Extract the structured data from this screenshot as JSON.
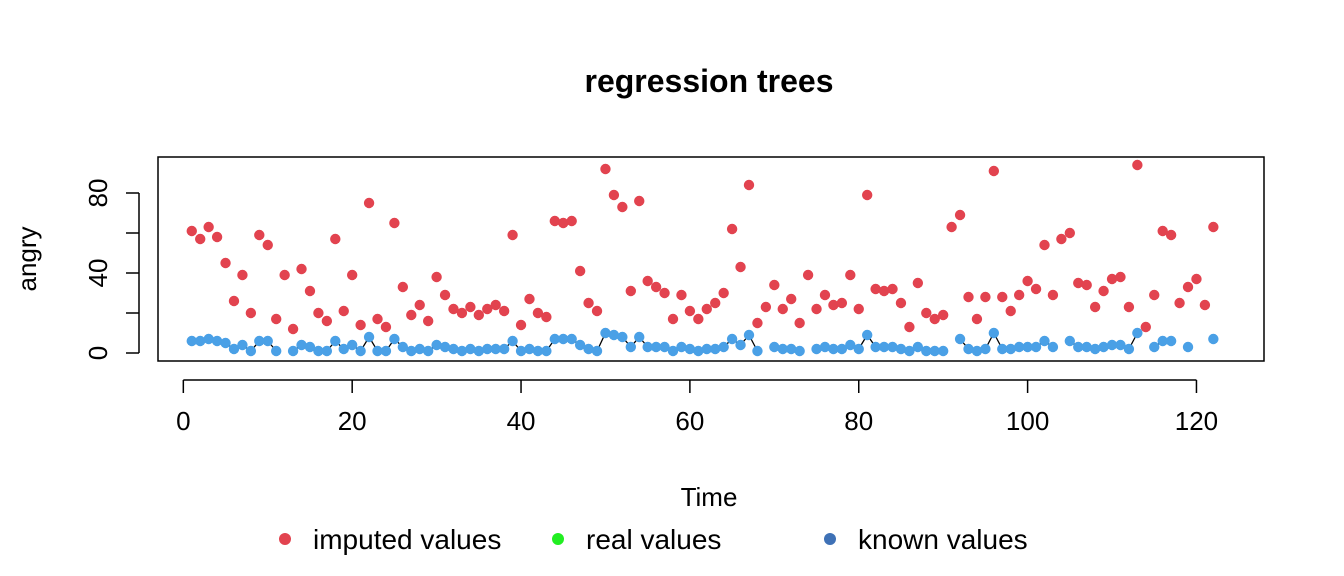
{
  "chart_data": {
    "type": "scatter",
    "title": "regression trees",
    "xlabel": "Time",
    "ylabel": "angry",
    "xlim": [
      -3,
      128
    ],
    "ylim": [
      -4,
      98
    ],
    "x_ticks": [
      0,
      20,
      40,
      60,
      80,
      100,
      120
    ],
    "y_ticks": [
      0,
      20,
      40,
      60,
      80
    ],
    "y_tick_labels": [
      0,
      40,
      80
    ],
    "grid": false,
    "legend": {
      "placement": "bottom",
      "entries": [
        {
          "label": "imputed values",
          "color": "#e2434f"
        },
        {
          "label": "real values",
          "color": "#22ee22"
        },
        {
          "label": "known values",
          "color": "#3e71b6"
        }
      ]
    },
    "colors": {
      "imputed": "#e2434f",
      "known": "#4aa0e6",
      "line": "#000000"
    },
    "series": [
      {
        "name": "imputed values",
        "x": [
          1,
          2,
          3,
          4,
          5,
          6,
          7,
          8,
          9,
          10,
          11,
          12,
          13,
          14,
          15,
          16,
          17,
          18,
          19,
          20,
          21,
          22,
          23,
          24,
          25,
          26,
          27,
          28,
          29,
          30,
          31,
          32,
          33,
          34,
          35,
          36,
          37,
          38,
          39,
          40,
          41,
          42,
          43,
          44,
          45,
          46,
          47,
          48,
          49,
          50,
          51,
          52,
          53,
          54,
          55,
          56,
          57,
          58,
          59,
          60,
          61,
          62,
          63,
          64,
          65,
          66,
          67,
          68,
          69,
          70,
          71,
          72,
          73,
          74,
          75,
          76,
          77,
          78,
          79,
          80,
          81,
          82,
          83,
          84,
          85,
          86,
          87,
          88,
          89,
          90,
          91,
          92,
          93,
          94,
          95,
          96,
          97,
          98,
          99,
          100,
          101,
          102,
          103,
          104,
          105,
          106,
          107,
          108,
          109,
          110,
          111,
          112,
          113,
          114,
          115,
          116,
          117,
          118,
          119,
          120,
          121,
          122
        ],
        "y": [
          61,
          57,
          63,
          58,
          45,
          26,
          39,
          20,
          59,
          54,
          17,
          39,
          12,
          42,
          31,
          20,
          16,
          57,
          21,
          39,
          14,
          75,
          17,
          13,
          65,
          33,
          19,
          24,
          16,
          38,
          29,
          22,
          20,
          23,
          19,
          22,
          24,
          21,
          59,
          14,
          27,
          20,
          18,
          66,
          65,
          66,
          41,
          25,
          21,
          92,
          79,
          73,
          31,
          76,
          36,
          33,
          30,
          17,
          29,
          21,
          17,
          22,
          25,
          30,
          62,
          43,
          84,
          15,
          23,
          34,
          22,
          27,
          15,
          39,
          22,
          29,
          24,
          25,
          39,
          22,
          79,
          32,
          31,
          32,
          25,
          13,
          35,
          20,
          17,
          19,
          63,
          69,
          28,
          17,
          28,
          91,
          28,
          21,
          29,
          36,
          32,
          54,
          29,
          57,
          60,
          35,
          34,
          23,
          31,
          37,
          38,
          23,
          94,
          13,
          29,
          61,
          59,
          25,
          33,
          37,
          24,
          63
        ]
      },
      {
        "name": "known values",
        "x": [
          1,
          2,
          3,
          4,
          5,
          6,
          7,
          8,
          9,
          10,
          11,
          13,
          14,
          15,
          16,
          17,
          18,
          19,
          20,
          21,
          22,
          23,
          24,
          25,
          26,
          27,
          28,
          29,
          30,
          31,
          32,
          33,
          34,
          35,
          36,
          37,
          38,
          39,
          40,
          41,
          42,
          43,
          44,
          45,
          46,
          47,
          48,
          49,
          50,
          51,
          52,
          53,
          54,
          55,
          56,
          57,
          58,
          59,
          60,
          61,
          62,
          63,
          64,
          65,
          66,
          67,
          68,
          70,
          71,
          72,
          73,
          75,
          76,
          77,
          78,
          79,
          80,
          81,
          82,
          83,
          84,
          85,
          86,
          87,
          88,
          89,
          90,
          92,
          93,
          94,
          95,
          96,
          97,
          98,
          99,
          100,
          101,
          102,
          103,
          105,
          106,
          107,
          108,
          109,
          110,
          111,
          112,
          113,
          115,
          116,
          117,
          119,
          122
        ],
        "y": [
          6,
          6,
          7,
          6,
          5,
          2,
          4,
          1,
          6,
          6,
          1,
          1,
          4,
          3,
          1,
          1,
          6,
          2,
          4,
          1,
          8,
          1,
          1,
          7,
          3,
          1,
          2,
          1,
          4,
          3,
          2,
          1,
          2,
          1,
          2,
          2,
          2,
          6,
          1,
          2,
          1,
          1,
          7,
          7,
          7,
          4,
          2,
          1,
          10,
          9,
          8,
          3,
          8,
          3,
          3,
          3,
          1,
          3,
          2,
          1,
          2,
          2,
          3,
          7,
          4,
          9,
          1,
          3,
          2,
          2,
          1,
          2,
          3,
          2,
          2,
          4,
          2,
          9,
          3,
          3,
          3,
          2,
          1,
          3,
          1,
          1,
          1,
          7,
          2,
          1,
          2,
          10,
          2,
          2,
          3,
          3,
          3,
          6,
          3,
          6,
          3,
          3,
          2,
          3,
          4,
          4,
          2,
          10,
          3,
          6,
          6,
          3,
          7
        ]
      },
      {
        "name": "real values",
        "x": [],
        "y": []
      }
    ]
  }
}
